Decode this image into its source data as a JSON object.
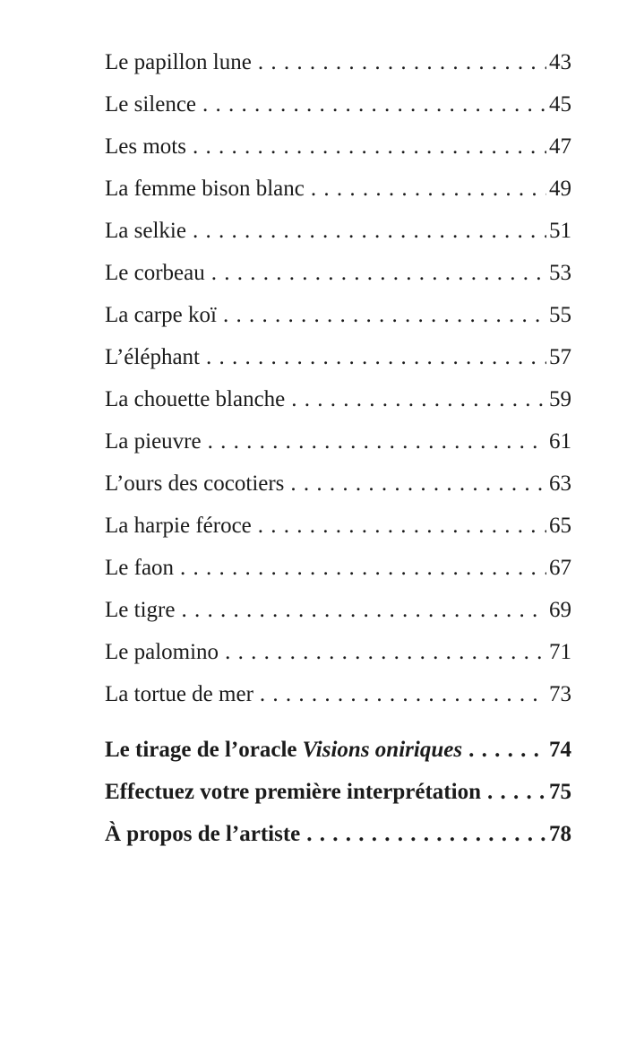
{
  "page": {
    "background_color": "#ffffff",
    "text_color": "#1b1b1b"
  },
  "toc": {
    "entries": [
      {
        "title": "Le papillon lune",
        "page": "43",
        "bold": false
      },
      {
        "title": "Le silence",
        "page": "45",
        "bold": false
      },
      {
        "title": "Les mots",
        "page": "47",
        "bold": false
      },
      {
        "title": "La femme bison blanc",
        "page": "49",
        "bold": false
      },
      {
        "title": "La selkie",
        "page": "51",
        "bold": false
      },
      {
        "title": "Le corbeau",
        "page": "53",
        "bold": false
      },
      {
        "title": "La carpe koï",
        "page": "55",
        "bold": false
      },
      {
        "title": "L’éléphant",
        "page": "57",
        "bold": false
      },
      {
        "title": "La chouette blanche",
        "page": "59",
        "bold": false
      },
      {
        "title": "La pieuvre",
        "page": "61",
        "bold": false
      },
      {
        "title": "L’ours des cocotiers",
        "page": "63",
        "bold": false
      },
      {
        "title": "La harpie féroce",
        "page": "65",
        "bold": false
      },
      {
        "title": "Le faon",
        "page": "67",
        "bold": false
      },
      {
        "title": "Le tigre",
        "page": "69",
        "bold": false
      },
      {
        "title": "Le palomino",
        "page": "71",
        "bold": false
      },
      {
        "title": "La tortue de mer",
        "page": "73",
        "bold": false
      },
      {
        "title": "Le tirage de l’oracle",
        "italic_suffix": "Visions oniriques",
        "page": "74",
        "bold": true,
        "section_start": true
      },
      {
        "title": "Effectuez votre première interprétation",
        "page": "75",
        "bold": true
      },
      {
        "title": "À propos de l’artiste",
        "page": "78",
        "bold": true
      }
    ]
  }
}
